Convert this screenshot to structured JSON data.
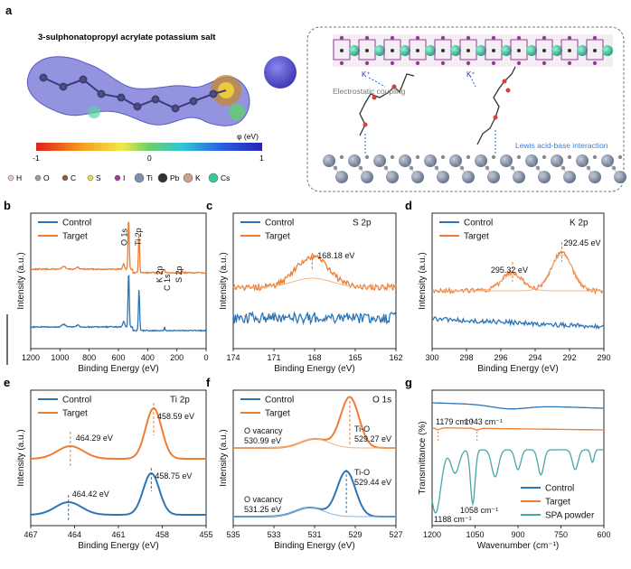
{
  "figure": {
    "panel_labels": [
      "a",
      "b",
      "c",
      "d",
      "e",
      "f",
      "g"
    ],
    "panel_a": {
      "molecule_title": "3-sulphonatopropyl acrylate potassium salt",
      "colorbar_ticks": [
        "-1",
        "0",
        "1"
      ],
      "colorbar_unit": "φ (eV)",
      "atom_legend": [
        "H",
        "O",
        "C",
        "S",
        "I",
        "Ti",
        "Pb",
        "K",
        "Cs"
      ],
      "atom_colors": [
        "#e8c8cc",
        "#9a9a9a",
        "#8a5a3a",
        "#e6e04a",
        "#9b3a9b",
        "#7d8fb0",
        "#333333",
        "#c9a08a",
        "#36c9a0"
      ],
      "k_label": "K⁺",
      "electrostatic_label": "Electrostatic coupling",
      "lewis_label": "Lewis acid-base interaction"
    },
    "colors": {
      "control": "#2e75b6",
      "target": "#ed7d31",
      "spa": "#49a6a6"
    }
  },
  "chart_data": [
    {
      "panel": "b",
      "type": "line",
      "legend": [
        "Control",
        "Target"
      ],
      "xlabel": "Binding Energy (eV)",
      "ylabel": "Intensity (a.u.)",
      "xlim": [
        1200,
        0
      ],
      "xticks": [
        1200,
        1000,
        800,
        600,
        400,
        200,
        0
      ],
      "annotations": [
        "O 1s",
        "Ti 2p",
        "K 2p",
        "C 1s",
        "S 2p"
      ],
      "peak_positions": [
        530,
        459,
        293,
        285,
        168
      ]
    },
    {
      "panel": "c",
      "type": "line",
      "title": "S 2p",
      "legend": [
        "Control",
        "Target"
      ],
      "xlabel": "Binding Energy (eV)",
      "ylabel": "Intensity (a.u.)",
      "xlim": [
        174,
        162
      ],
      "xticks": [
        174,
        171,
        168,
        165,
        162
      ],
      "annotations": [
        "168.18 eV"
      ],
      "peaks": [
        168.18
      ]
    },
    {
      "panel": "d",
      "type": "line",
      "title": "K 2p",
      "legend": [
        "Control",
        "Target"
      ],
      "xlabel": "Binding Energy (eV)",
      "ylabel": "Intensity (a.u.)",
      "xlim": [
        300,
        290
      ],
      "xticks": [
        300,
        298,
        296,
        294,
        292,
        290
      ],
      "annotations": [
        "295.32 eV",
        "292.45 eV"
      ],
      "peaks": [
        295.32,
        292.45
      ]
    },
    {
      "panel": "e",
      "type": "line",
      "title": "Ti 2p",
      "legend": [
        "Control",
        "Target"
      ],
      "xlabel": "Binding Energy (eV)",
      "ylabel": "Intensity (a.u.)",
      "xlim": [
        467,
        455
      ],
      "xticks": [
        467,
        464,
        461,
        458,
        455
      ],
      "annotations": [
        "464.29 eV",
        "458.59 eV",
        "464.42 eV",
        "458.75 eV"
      ],
      "peaks_target": [
        464.29,
        458.59
      ],
      "peaks_control": [
        464.42,
        458.75
      ]
    },
    {
      "panel": "f",
      "type": "line",
      "title": "O 1s",
      "legend": [
        "Control",
        "Target"
      ],
      "xlabel": "Binding Energy (eV)",
      "ylabel": "Intensity (a.u.)",
      "xlim": [
        535,
        527
      ],
      "xticks": [
        535,
        533,
        531,
        529,
        527
      ],
      "annotations": [
        "O vacancy",
        "530.99 eV",
        "Ti-O",
        "529.27 eV",
        "O vacancy",
        "531.25 eV",
        "Ti-O",
        "529.44 eV"
      ],
      "peaks_target": [
        530.99,
        529.27
      ],
      "peaks_control": [
        531.25,
        529.44
      ]
    },
    {
      "panel": "g",
      "type": "line",
      "legend": [
        "Control",
        "Target",
        "SPA powder"
      ],
      "xlabel": "Wavenumber (cm⁻¹)",
      "ylabel": "Transmittance (%)",
      "xlim": [
        1200,
        600
      ],
      "xticks": [
        1200,
        1050,
        900,
        750,
        600
      ],
      "annotations": [
        "1179 cm⁻¹",
        "1043 cm⁻¹",
        "1188 cm⁻¹",
        "1058 cm⁻¹"
      ]
    }
  ]
}
